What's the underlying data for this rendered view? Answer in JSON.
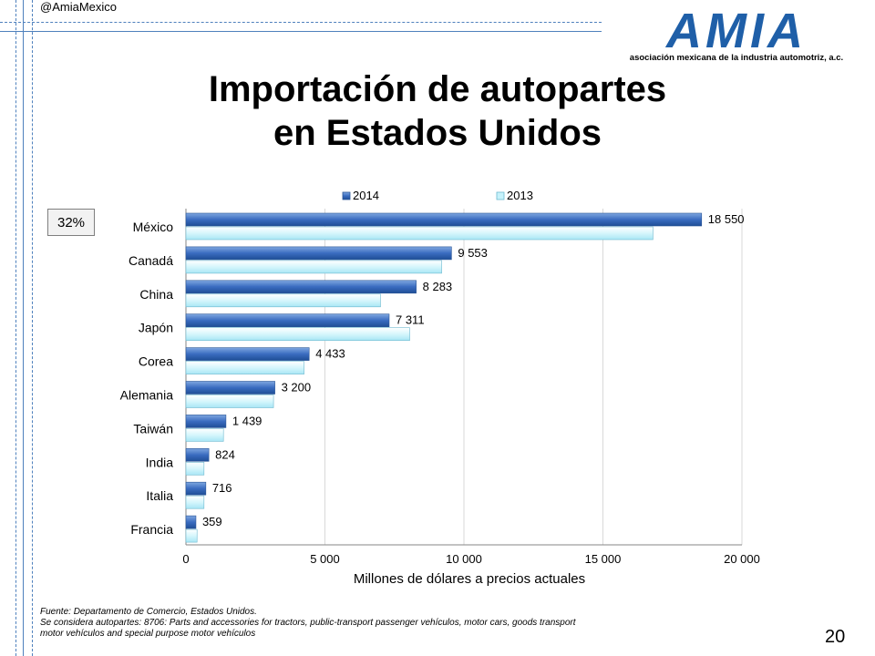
{
  "slide": {
    "handle": "@AmiaMexico",
    "title_line1": "Importación de autopartes",
    "title_line2": "en Estados Unidos",
    "highlight": "32%",
    "footnote_line1": "Fuente: Departamento de Comercio, Estados Unidos.",
    "footnote_line2": "Se considera autopartes: 8706: Parts and accessories for tractors, public-transport passenger vehículos, motor cars, goods transport",
    "footnote_line3": "motor vehículos and special purpose motor vehículos",
    "page_number": "20"
  },
  "logo": {
    "wordmark": "AMIA",
    "tagline": "asociación mexicana de la industria automotriz, a.c.",
    "color": "#1f5fa8"
  },
  "colors": {
    "frame_lines": "#4f81bd",
    "series_2014": "#3d6fbf",
    "series_2013": "#c6f2fb",
    "gridline": "#d9d9d9"
  },
  "chart_data": {
    "type": "bar",
    "orientation": "horizontal",
    "categories": [
      "México",
      "Canadá",
      "China",
      "Japón",
      "Corea",
      "Alemania",
      "Taiwán",
      "India",
      "Italia",
      "Francia"
    ],
    "series": [
      {
        "name": "2014",
        "values": [
          18550,
          9553,
          8283,
          7311,
          4433,
          3200,
          1439,
          824,
          716,
          359
        ],
        "labels": [
          "18 550",
          "9 553",
          "8 283",
          "7 311",
          "4 433",
          "3 200",
          "1 439",
          "824",
          "716",
          "359"
        ]
      },
      {
        "name": "2013",
        "values": [
          16800,
          9200,
          7000,
          8050,
          4250,
          3150,
          1350,
          650,
          650,
          400
        ]
      }
    ],
    "xlabel": "Millones de dólares a precios actuales",
    "xlim": [
      0,
      20000
    ],
    "xticks": [
      0,
      5000,
      10000,
      15000,
      20000
    ],
    "xtick_labels": [
      "0",
      "5 000",
      "10 000",
      "15 000",
      "20 000"
    ],
    "grid": true,
    "legend_position": "top"
  }
}
